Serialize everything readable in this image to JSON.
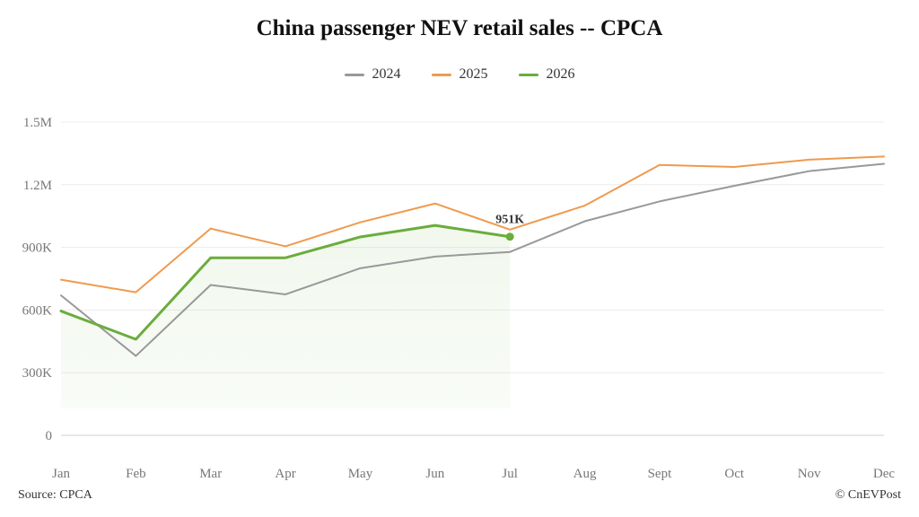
{
  "chart_data": {
    "type": "line",
    "title": "China passenger NEV retail sales -- CPCA",
    "categories": [
      "Jan",
      "Feb",
      "Mar",
      "Apr",
      "May",
      "Jun",
      "Jul",
      "Aug",
      "Sept",
      "Oct",
      "Nov",
      "Dec"
    ],
    "yticks": [
      "0",
      "300K",
      "600K",
      "900K",
      "1.2M",
      "1.5M"
    ],
    "ylim": [
      0,
      1500000
    ],
    "grid": true,
    "legend_position": "top-center",
    "series": [
      {
        "name": "2024",
        "color": "#999999",
        "values": [
          670000,
          380000,
          720000,
          675000,
          800000,
          856000,
          878000,
          1025000,
          1120000,
          1195000,
          1265000,
          1300000
        ]
      },
      {
        "name": "2025",
        "color": "#ef9a4e",
        "values": [
          745000,
          685000,
          990000,
          905000,
          1020000,
          1110000,
          985000,
          1100000,
          1295000,
          1285000,
          1320000,
          1335000
        ]
      },
      {
        "name": "2026",
        "color": "#6aad3d",
        "shaded": true,
        "values": [
          595000,
          460000,
          850000,
          850000,
          950000,
          1005000,
          951000,
          null,
          null,
          null,
          null,
          null
        ]
      }
    ],
    "annotations": [
      {
        "series": "2026",
        "category": "Jul",
        "text": "951K"
      }
    ]
  },
  "source": "Source: CPCA",
  "credit": "© CnEVPost"
}
